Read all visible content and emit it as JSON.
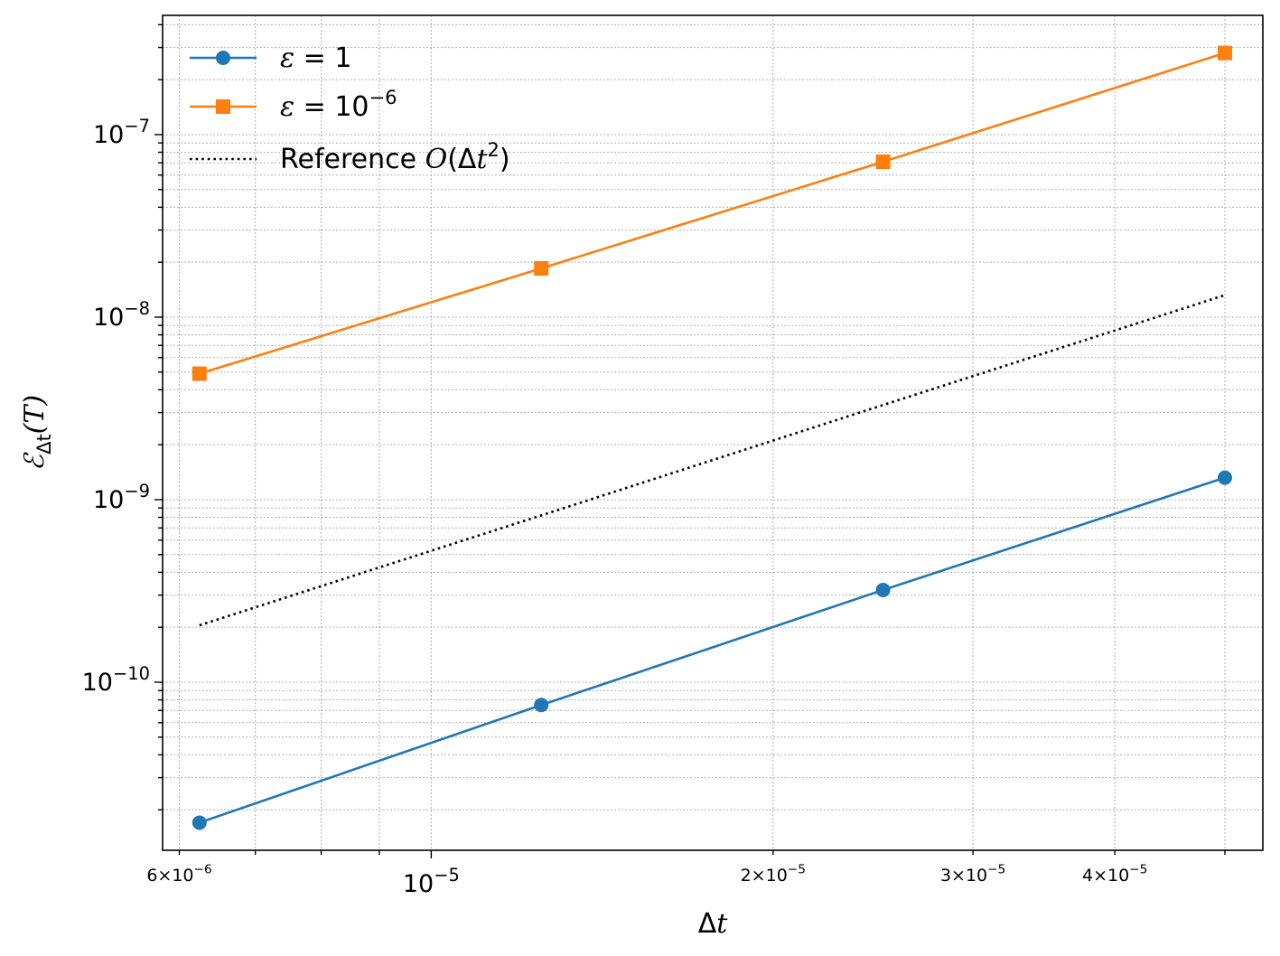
{
  "chart_data": {
    "type": "line",
    "x_scale": "log",
    "y_scale": "log",
    "xlim": [
      5.8e-06,
      5.4e-05
    ],
    "ylim": [
      1.2e-11,
      4.5e-07
    ],
    "grid": true,
    "grid_style": "dotted",
    "legend_position": "top-left",
    "xlabel": "Δt",
    "ylabel": "ℰΔt(T)",
    "x_ticks": [
      {
        "value": 6e-06,
        "base": "6×10",
        "exp": "−6"
      },
      {
        "value": 1e-05,
        "base": "10",
        "exp": "−5"
      },
      {
        "value": 2e-05,
        "base": "2×10",
        "exp": "−5"
      },
      {
        "value": 3e-05,
        "base": "3×10",
        "exp": "−5"
      },
      {
        "value": 4e-05,
        "base": "4×10",
        "exp": "−5"
      }
    ],
    "y_ticks": [
      {
        "value": 1e-10,
        "base": "10",
        "exp": "−10"
      },
      {
        "value": 1e-09,
        "base": "10",
        "exp": "−9"
      },
      {
        "value": 1e-08,
        "base": "10",
        "exp": "−8"
      },
      {
        "value": 1e-07,
        "base": "10",
        "exp": "−7"
      }
    ],
    "x": [
      6.25e-06,
      1.25e-05,
      2.5e-05,
      5e-05
    ],
    "series": [
      {
        "name": "ε = 1",
        "legend_var": "ε",
        "legend_rest": " = 1",
        "legend_exp": "",
        "values": [
          1.7e-11,
          7.5e-11,
          3.2e-10,
          1.32e-09
        ],
        "color": "#1f77b4",
        "marker": "circle",
        "line": "solid"
      },
      {
        "name": "ε = 10−6",
        "legend_var": "ε",
        "legend_rest": " = 10",
        "legend_exp": "−6",
        "values": [
          4.9e-09,
          1.85e-08,
          7.1e-08,
          2.8e-07
        ],
        "color": "#ff7f0e",
        "marker": "square",
        "line": "solid"
      },
      {
        "name": "Reference O(Δt2)",
        "legend_var": "",
        "legend_rest": "Reference O(Δt",
        "legend_exp": "2",
        "legend_close": ")",
        "values": [
          2.05e-10,
          8.2e-10,
          3.3e-09,
          1.32e-08
        ],
        "color": "#000000",
        "marker": "none",
        "line": "dotted"
      }
    ]
  }
}
